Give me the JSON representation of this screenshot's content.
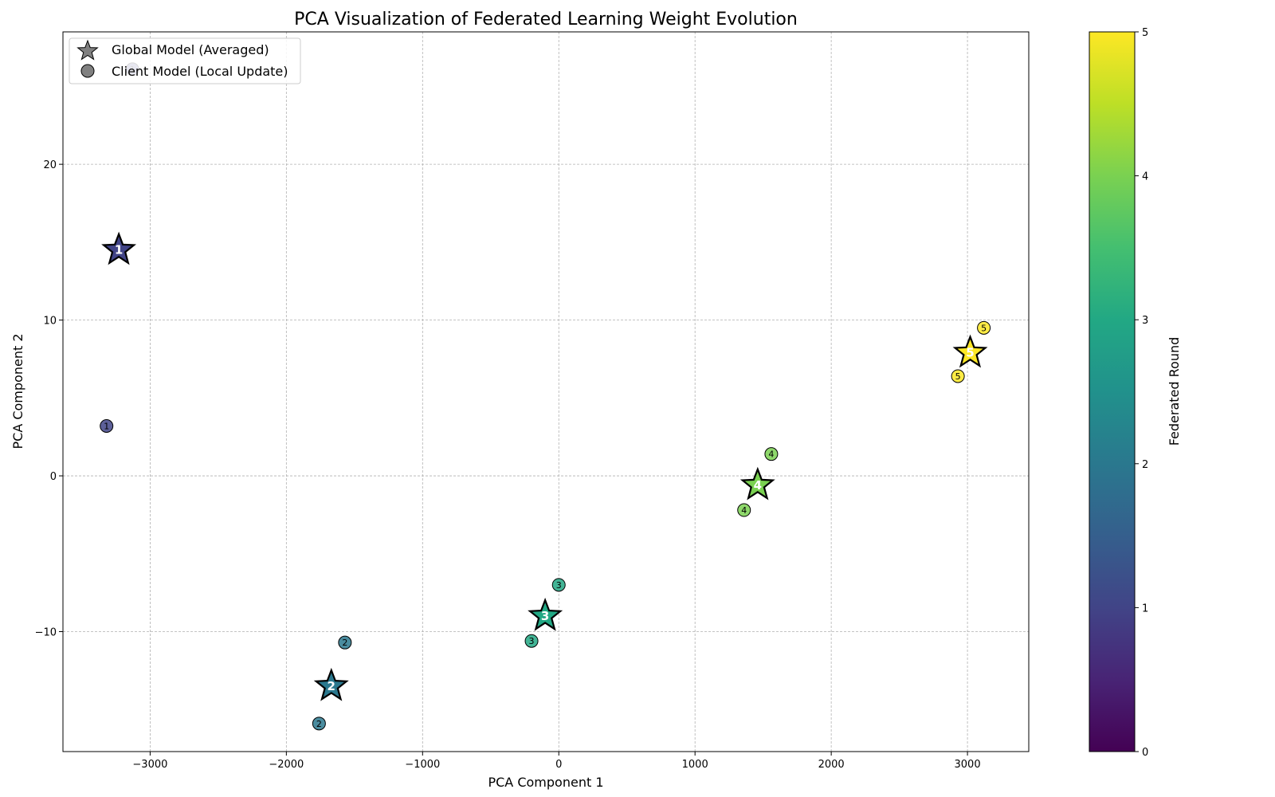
{
  "chart_data": {
    "type": "scatter",
    "title": "PCA Visualization of Federated Learning Weight Evolution",
    "xlabel": "PCA Component 1",
    "ylabel": "PCA Component 2",
    "xlim": [
      -3640,
      3450
    ],
    "ylim": [
      -17.7,
      28.5
    ],
    "xticks": [
      -3000,
      -2000,
      -1000,
      0,
      1000,
      2000,
      3000
    ],
    "xtick_labels": [
      "−3000",
      "−2000",
      "−1000",
      "0",
      "1000",
      "2000",
      "3000"
    ],
    "yticks": [
      -10,
      0,
      10,
      20
    ],
    "ytick_labels": [
      "−10",
      "0",
      "10",
      "20"
    ],
    "grid": true,
    "legend": {
      "location": "top-left",
      "entries": [
        {
          "label": "Global Model (Averaged)",
          "marker": "star"
        },
        {
          "label": "Client Model (Local Update)",
          "marker": "circle"
        }
      ]
    },
    "colorbar": {
      "label": "Federated Round",
      "colormap": "viridis",
      "min": 0,
      "max": 5,
      "ticks": [
        0,
        1,
        2,
        3,
        4,
        5
      ],
      "tick_labels": [
        "0",
        "1",
        "2",
        "3",
        "4",
        "5"
      ]
    },
    "global_models": [
      {
        "round": 1,
        "label": "1",
        "x": -3230,
        "y": 14.6
      },
      {
        "round": 2,
        "label": "2",
        "x": -1670,
        "y": -13.4
      },
      {
        "round": 3,
        "label": "3",
        "x": -100,
        "y": -8.9
      },
      {
        "round": 4,
        "label": "4",
        "x": 1460,
        "y": -0.5
      },
      {
        "round": 5,
        "label": "5",
        "x": 3020,
        "y": 8.0
      }
    ],
    "client_models": [
      {
        "round": 1,
        "label": "1",
        "x": -3130,
        "y": 26.1
      },
      {
        "round": 1,
        "label": "1",
        "x": -3320,
        "y": 3.2
      },
      {
        "round": 2,
        "label": "2",
        "x": -1570,
        "y": -10.7
      },
      {
        "round": 2,
        "label": "2",
        "x": -1760,
        "y": -15.9
      },
      {
        "round": 3,
        "label": "3",
        "x": 0,
        "y": -7.0
      },
      {
        "round": 3,
        "label": "3",
        "x": -200,
        "y": -10.6
      },
      {
        "round": 4,
        "label": "4",
        "x": 1560,
        "y": 1.4
      },
      {
        "round": 4,
        "label": "4",
        "x": 1360,
        "y": -2.2
      },
      {
        "round": 5,
        "label": "5",
        "x": 3120,
        "y": 9.5
      },
      {
        "round": 5,
        "label": "5",
        "x": 2930,
        "y": 6.4
      }
    ]
  }
}
